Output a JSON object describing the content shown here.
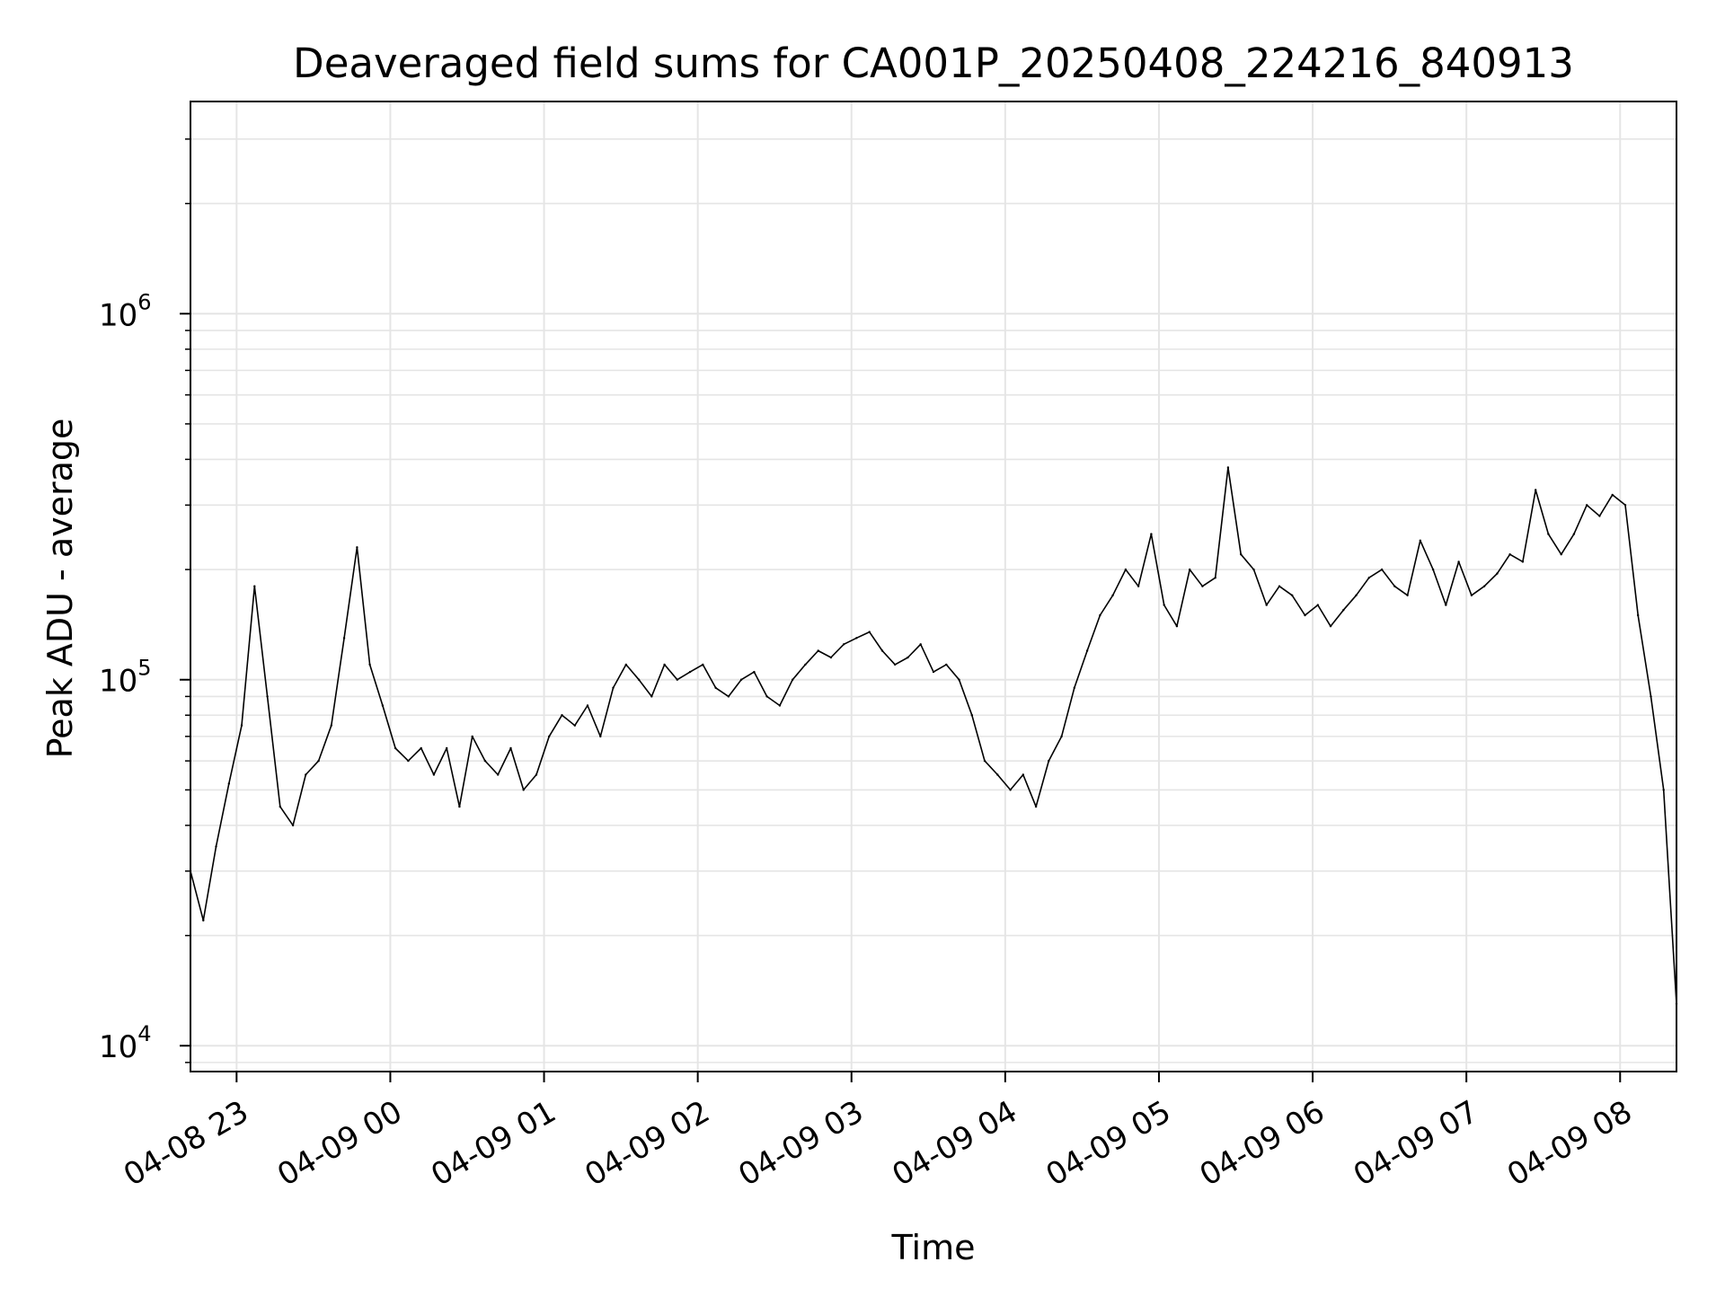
{
  "chart_data": {
    "type": "line",
    "title": "Deaveraged field sums for CA001P_20250408_224216_840913",
    "xlabel": "Time",
    "ylabel": "Peak ADU - average",
    "yscale": "log",
    "ylim": [
      8500,
      3800000
    ],
    "xlim": [
      "04-08 22:42",
      "04-09 08:22"
    ],
    "grid": true,
    "line_color": "#000000",
    "grid_color": "#e5e5e5",
    "x_ticks": [
      {
        "time": "04-08 23:00",
        "label": "04-08 23"
      },
      {
        "time": "04-09 00:00",
        "label": "04-09 00"
      },
      {
        "time": "04-09 01:00",
        "label": "04-09 01"
      },
      {
        "time": "04-09 02:00",
        "label": "04-09 02"
      },
      {
        "time": "04-09 03:00",
        "label": "04-09 03"
      },
      {
        "time": "04-09 04:00",
        "label": "04-09 04"
      },
      {
        "time": "04-09 05:00",
        "label": "04-09 05"
      },
      {
        "time": "04-09 06:00",
        "label": "04-09 06"
      },
      {
        "time": "04-09 07:00",
        "label": "04-09 07"
      },
      {
        "time": "04-09 08:00",
        "label": "04-09 08"
      }
    ],
    "y_ticks": [
      {
        "value": 10000,
        "base": "10",
        "exp": "4"
      },
      {
        "value": 100000,
        "base": "10",
        "exp": "5"
      },
      {
        "value": 1000000,
        "base": "10",
        "exp": "6"
      }
    ],
    "series": [
      {
        "x": [
          "04-08 22:42",
          "04-08 22:47",
          "04-08 22:52",
          "04-08 22:57",
          "04-08 23:02",
          "04-08 23:07",
          "04-08 23:12",
          "04-08 23:17",
          "04-08 23:22",
          "04-08 23:27",
          "04-08 23:32",
          "04-08 23:37",
          "04-08 23:42",
          "04-08 23:47",
          "04-08 23:52",
          "04-08 23:57",
          "04-09 00:02",
          "04-09 00:07",
          "04-09 00:12",
          "04-09 00:17",
          "04-09 00:22",
          "04-09 00:27",
          "04-09 00:32",
          "04-09 00:37",
          "04-09 00:42",
          "04-09 00:47",
          "04-09 00:52",
          "04-09 00:57",
          "04-09 01:02",
          "04-09 01:07",
          "04-09 01:12",
          "04-09 01:17",
          "04-09 01:22",
          "04-09 01:27",
          "04-09 01:32",
          "04-09 01:37",
          "04-09 01:42",
          "04-09 01:47",
          "04-09 01:52",
          "04-09 01:57",
          "04-09 02:02",
          "04-09 02:07",
          "04-09 02:12",
          "04-09 02:17",
          "04-09 02:22",
          "04-09 02:27",
          "04-09 02:32",
          "04-09 02:37",
          "04-09 02:42",
          "04-09 02:47",
          "04-09 02:52",
          "04-09 02:57",
          "04-09 03:02",
          "04-09 03:07",
          "04-09 03:12",
          "04-09 03:17",
          "04-09 03:22",
          "04-09 03:27",
          "04-09 03:32",
          "04-09 03:37",
          "04-09 03:42",
          "04-09 03:47",
          "04-09 03:52",
          "04-09 03:57",
          "04-09 04:02",
          "04-09 04:07",
          "04-09 04:12",
          "04-09 04:17",
          "04-09 04:22",
          "04-09 04:27",
          "04-09 04:32",
          "04-09 04:37",
          "04-09 04:42",
          "04-09 04:47",
          "04-09 04:52",
          "04-09 04:57",
          "04-09 05:02",
          "04-09 05:07",
          "04-09 05:12",
          "04-09 05:17",
          "04-09 05:22",
          "04-09 05:27",
          "04-09 05:32",
          "04-09 05:37",
          "04-09 05:42",
          "04-09 05:47",
          "04-09 05:52",
          "04-09 05:57",
          "04-09 06:02",
          "04-09 06:07",
          "04-09 06:12",
          "04-09 06:17",
          "04-09 06:22",
          "04-09 06:27",
          "04-09 06:32",
          "04-09 06:37",
          "04-09 06:42",
          "04-09 06:47",
          "04-09 06:52",
          "04-09 06:57",
          "04-09 07:02",
          "04-09 07:07",
          "04-09 07:12",
          "04-09 07:17",
          "04-09 07:22",
          "04-09 07:27",
          "04-09 07:32",
          "04-09 07:37",
          "04-09 07:42",
          "04-09 07:47",
          "04-09 07:52",
          "04-09 07:57",
          "04-09 08:02",
          "04-09 08:07",
          "04-09 08:12",
          "04-09 08:17",
          "04-09 08:22"
        ],
        "values": [
          30000,
          22000,
          35000,
          52000,
          75000,
          180000,
          90000,
          45000,
          40000,
          55000,
          60000,
          75000,
          130000,
          230000,
          110000,
          85000,
          65000,
          60000,
          65000,
          55000,
          65000,
          45000,
          70000,
          60000,
          55000,
          65000,
          50000,
          55000,
          70000,
          80000,
          75000,
          85000,
          70000,
          95000,
          110000,
          100000,
          90000,
          110000,
          100000,
          105000,
          110000,
          95000,
          90000,
          100000,
          105000,
          90000,
          85000,
          100000,
          110000,
          120000,
          115000,
          125000,
          130000,
          135000,
          120000,
          110000,
          115000,
          125000,
          105000,
          110000,
          100000,
          80000,
          60000,
          55000,
          50000,
          55000,
          45000,
          60000,
          70000,
          95000,
          120000,
          150000,
          170000,
          200000,
          180000,
          250000,
          160000,
          140000,
          200000,
          180000,
          190000,
          380000,
          220000,
          200000,
          160000,
          180000,
          170000,
          150000,
          160000,
          140000,
          155000,
          170000,
          190000,
          200000,
          180000,
          170000,
          240000,
          200000,
          160000,
          210000,
          170000,
          180000,
          195000,
          220000,
          210000,
          330000,
          250000,
          220000,
          250000,
          300000,
          280000,
          320000,
          300000,
          150000,
          90000,
          50000,
          13000
        ]
      }
    ]
  }
}
